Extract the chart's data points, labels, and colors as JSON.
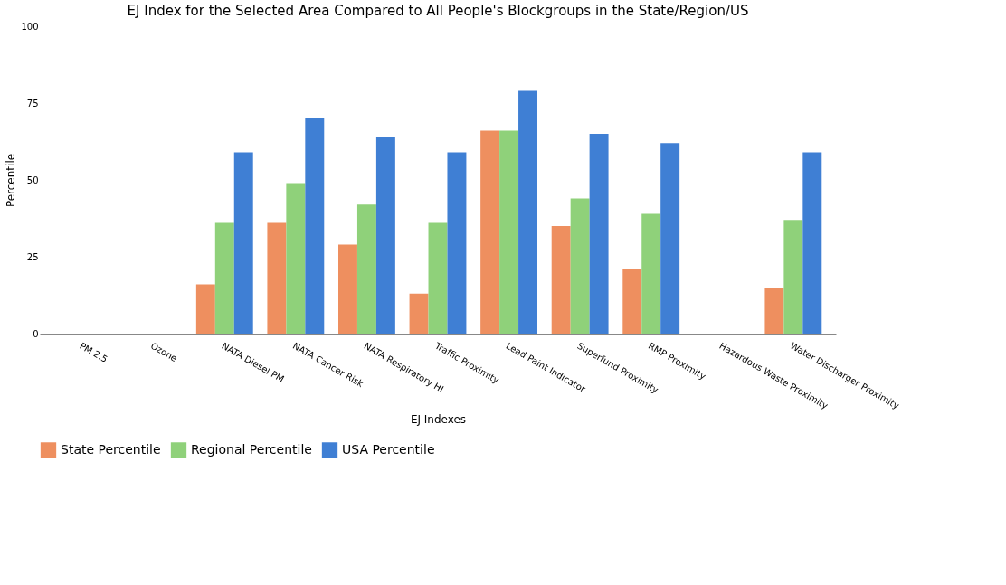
{
  "chart_data": {
    "type": "bar",
    "title": "EJ Index for the Selected Area Compared to All People's Blockgroups in the State/Region/US",
    "xlabel": "EJ Indexes",
    "ylabel": "Percentile",
    "categories": [
      "PM 2.5",
      "Ozone",
      "NATA Diesel PM",
      "NATA Cancer Risk",
      "NATA Respiratory HI",
      "Traffic Proximity",
      "Lead Paint Indicator",
      "Superfund Proximity",
      "RMP Proximity",
      "Hazardous Waste Proximity",
      "Water Discharger Proximity"
    ],
    "series": [
      {
        "name": "State Percentile",
        "color": "#ee8f5f",
        "values": [
          null,
          null,
          16,
          36,
          29,
          13,
          66,
          35,
          21,
          null,
          15
        ]
      },
      {
        "name": "Regional Percentile",
        "color": "#8fd17a",
        "values": [
          null,
          null,
          36,
          49,
          42,
          36,
          66,
          44,
          39,
          null,
          37
        ]
      },
      {
        "name": "USA  Percentile",
        "color": "#3f7fd4",
        "values": [
          null,
          null,
          59,
          70,
          64,
          59,
          79,
          65,
          62,
          null,
          59
        ]
      }
    ],
    "ylim": [
      0,
      100
    ],
    "yticks": [
      0,
      25,
      50,
      75,
      100
    ],
    "grid": false,
    "legend": "bottom"
  }
}
